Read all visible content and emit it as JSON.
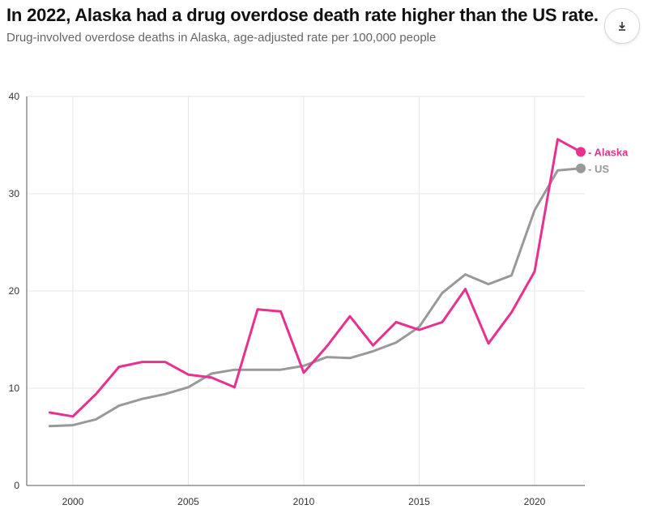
{
  "header": {
    "title": "In 2022, Alaska had a drug overdose death rate higher than the US rate.",
    "subtitle": "Drug-involved overdose deaths in Alaska, age-adjusted rate per 100,000 people",
    "download_icon": "download-icon"
  },
  "chart_data": {
    "type": "line",
    "title": "In 2022, Alaska had a drug overdose death rate higher than the US rate.",
    "subtitle": "Drug-involved overdose deaths in Alaska, age-adjusted rate per 100,000 people",
    "xlabel": "",
    "ylabel": "",
    "xlim": [
      1999,
      2022
    ],
    "ylim": [
      0,
      40
    ],
    "x_ticks": [
      2000,
      2005,
      2010,
      2015,
      2020
    ],
    "y_ticks": [
      0,
      10,
      20,
      30,
      40
    ],
    "grid": true,
    "legend": "end-of-line labels, right",
    "x": [
      1999,
      2000,
      2001,
      2002,
      2003,
      2004,
      2005,
      2006,
      2007,
      2008,
      2009,
      2010,
      2011,
      2012,
      2013,
      2014,
      2015,
      2016,
      2017,
      2018,
      2019,
      2020,
      2021,
      2022
    ],
    "series": [
      {
        "name": "Alaska",
        "color": "#e8318f",
        "values": [
          7.5,
          7.1,
          9.4,
          12.2,
          12.7,
          12.7,
          11.4,
          11.1,
          10.1,
          18.1,
          17.9,
          11.6,
          14.3,
          17.4,
          14.4,
          16.8,
          16.0,
          16.8,
          20.2,
          14.6,
          17.8,
          22.0,
          35.6,
          34.3
        ]
      },
      {
        "name": "US",
        "color": "#999999",
        "values": [
          6.1,
          6.2,
          6.8,
          8.2,
          8.9,
          9.4,
          10.1,
          11.5,
          11.9,
          11.9,
          11.9,
          12.3,
          13.2,
          13.1,
          13.8,
          14.7,
          16.3,
          19.8,
          21.7,
          20.7,
          21.6,
          28.3,
          32.4,
          32.6
        ]
      }
    ]
  }
}
